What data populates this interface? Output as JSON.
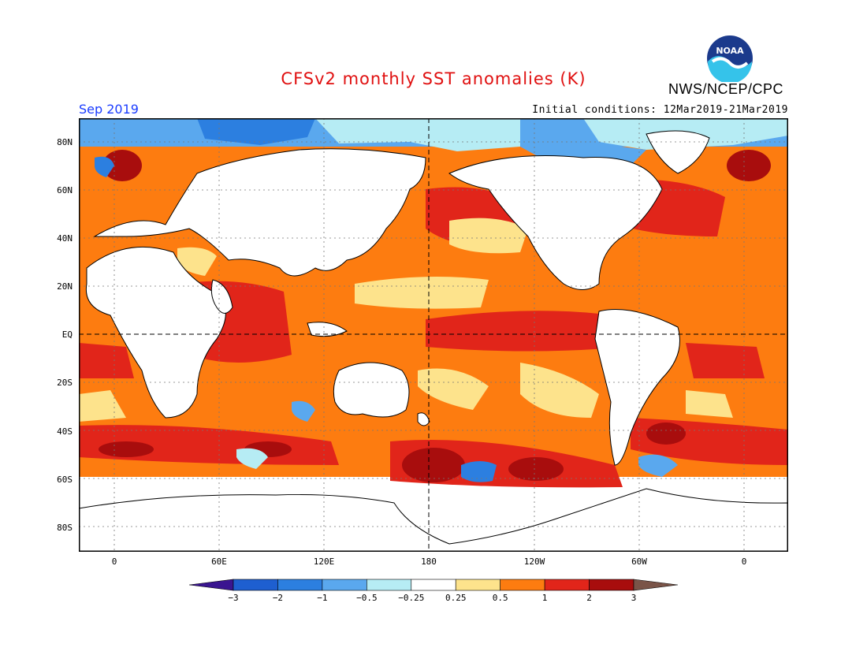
{
  "header": {
    "title": "CFSv2 monthly SST anomalies (K)",
    "org": "NWS/NCEP/CPC",
    "logo_text": "NOAA",
    "month": "Sep 2019",
    "initial_conditions": "Initial conditions: 12Mar2019-21Mar2019"
  },
  "axes": {
    "y_ticks": [
      "80N",
      "60N",
      "40N",
      "20N",
      "EQ",
      "20S",
      "40S",
      "60S",
      "80S"
    ],
    "x_ticks": [
      "0",
      "60E",
      "120E",
      "180",
      "120W",
      "60W",
      "0"
    ]
  },
  "colorbar": {
    "labels": [
      "-3",
      "-2",
      "-1",
      "-0.5",
      "-0.25",
      "0.25",
      "0.5",
      "1",
      "2",
      "3"
    ],
    "colors": [
      "#3a1590",
      "#1e5fd0",
      "#2c7fe0",
      "#5aa8ee",
      "#b6ecf4",
      "#ffffff",
      "#fde38c",
      "#fd7c10",
      "#e1251a",
      "#a80d0d",
      "#7a5448"
    ]
  },
  "colors": {
    "title": "#e01010",
    "month": "#1a3cff",
    "land": "#ffffff",
    "ocean_warm": "#fd7c10"
  }
}
